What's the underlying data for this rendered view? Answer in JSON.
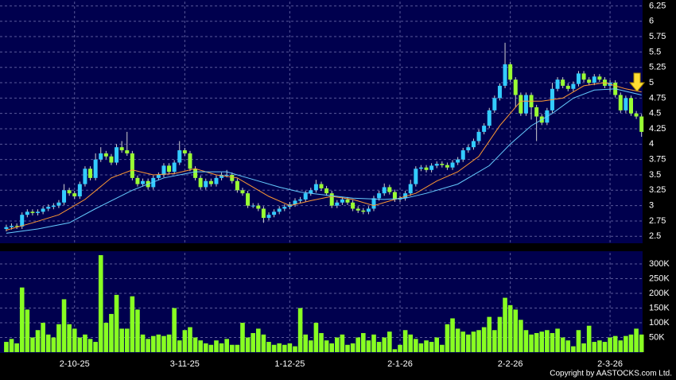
{
  "chart_data": [
    {
      "type": "candlestick",
      "up_color": "#33ccff",
      "down_color": "#99ff33",
      "wick_color": "#d0d0d0",
      "grid": true,
      "xlim": [
        -1.2,
        121.2
      ],
      "ylim": [
        2.4,
        6.32
      ],
      "yticks": [
        2.5,
        2.75,
        3,
        3.25,
        3.5,
        3.75,
        4,
        4.25,
        4.5,
        4.75,
        5,
        5.25,
        5.5,
        5.75,
        6,
        6.25
      ],
      "open": [
        2.62,
        2.65,
        2.67,
        2.66,
        2.85,
        2.9,
        2.88,
        2.9,
        2.95,
        2.98,
        3.0,
        3.05,
        3.25,
        3.2,
        3.15,
        3.35,
        3.6,
        3.45,
        3.75,
        3.85,
        3.8,
        3.7,
        3.95,
        3.9,
        3.85,
        3.45,
        3.35,
        3.4,
        3.3,
        3.45,
        3.5,
        3.65,
        3.55,
        3.7,
        3.9,
        3.85,
        3.6,
        3.45,
        3.3,
        3.4,
        3.35,
        3.45,
        3.5,
        3.5,
        3.4,
        3.25,
        3.2,
        3.0,
        3.0,
        2.95,
        2.8,
        2.85,
        2.9,
        2.95,
        2.98,
        3.02,
        3.08,
        3.1,
        3.2,
        3.25,
        3.35,
        3.28,
        3.2,
        3.0,
        3.05,
        3.1,
        3.05,
        2.95,
        2.92,
        2.9,
        2.95,
        3.12,
        3.2,
        3.3,
        3.22,
        3.1,
        3.12,
        3.2,
        3.35,
        3.6,
        3.62,
        3.58,
        3.65,
        3.68,
        3.66,
        3.62,
        3.7,
        3.75,
        3.9,
        3.95,
        4.05,
        4.2,
        4.3,
        4.55,
        4.75,
        4.95,
        5.3,
        5.05,
        4.8,
        4.5,
        4.8,
        4.6,
        4.45,
        4.35,
        4.55,
        4.9,
        5.05,
        4.95,
        4.9,
        4.98,
        5.15,
        5.05,
        5.0,
        5.1,
        5.05,
        4.95,
        5.0,
        4.8,
        4.55,
        4.75,
        4.5,
        4.45
      ],
      "high": [
        2.69,
        2.71,
        2.71,
        2.89,
        2.94,
        2.94,
        2.94,
        2.99,
        3.02,
        3.04,
        3.09,
        3.35,
        3.29,
        3.24,
        3.39,
        3.64,
        3.64,
        3.85,
        3.95,
        3.89,
        3.84,
        4.0,
        4.05,
        4.2,
        3.89,
        3.49,
        3.44,
        3.44,
        3.49,
        3.54,
        3.69,
        3.69,
        3.74,
        4.05,
        3.94,
        3.89,
        3.64,
        3.49,
        3.44,
        3.44,
        3.49,
        3.54,
        3.58,
        3.54,
        3.44,
        3.29,
        3.24,
        3.04,
        3.04,
        2.99,
        2.89,
        2.94,
        2.99,
        3.02,
        3.06,
        3.12,
        3.14,
        3.24,
        3.29,
        3.42,
        3.39,
        3.32,
        3.24,
        3.09,
        3.14,
        3.14,
        3.09,
        2.99,
        2.96,
        2.99,
        3.16,
        3.24,
        3.36,
        3.34,
        3.26,
        3.16,
        3.24,
        3.42,
        3.64,
        3.66,
        3.66,
        3.69,
        3.72,
        3.72,
        3.7,
        3.74,
        3.79,
        3.94,
        3.99,
        4.09,
        4.24,
        4.34,
        4.59,
        4.79,
        4.99,
        5.65,
        5.34,
        5.09,
        4.84,
        4.84,
        4.84,
        4.64,
        4.49,
        4.59,
        5.0,
        5.09,
        5.09,
        4.99,
        5.02,
        5.19,
        5.19,
        5.09,
        5.14,
        5.14,
        5.09,
        5.04,
        5.04,
        4.84,
        4.79,
        4.79,
        4.54,
        4.49
      ],
      "low": [
        2.58,
        2.61,
        2.62,
        2.62,
        2.81,
        2.84,
        2.84,
        2.86,
        2.91,
        2.94,
        2.96,
        3.01,
        3.16,
        3.11,
        3.11,
        3.31,
        3.41,
        3.41,
        3.71,
        3.76,
        3.66,
        3.66,
        3.86,
        3.81,
        3.41,
        3.31,
        3.31,
        3.26,
        3.26,
        3.41,
        3.46,
        3.51,
        3.51,
        3.66,
        3.81,
        3.56,
        3.41,
        3.26,
        3.26,
        3.31,
        3.31,
        3.41,
        3.46,
        3.36,
        3.21,
        3.16,
        2.96,
        2.96,
        2.91,
        2.72,
        2.76,
        2.81,
        2.86,
        2.91,
        2.94,
        2.98,
        3.04,
        3.06,
        3.16,
        3.21,
        3.24,
        3.16,
        2.96,
        2.96,
        3.01,
        3.01,
        2.91,
        2.88,
        2.86,
        2.86,
        2.91,
        3.08,
        3.16,
        3.18,
        3.06,
        3.06,
        3.08,
        3.16,
        3.31,
        3.56,
        3.54,
        3.54,
        3.61,
        3.62,
        3.58,
        3.58,
        3.66,
        3.71,
        3.86,
        3.91,
        4.01,
        4.16,
        4.26,
        4.51,
        4.71,
        4.91,
        5.01,
        4.6,
        4.46,
        4.46,
        4.4,
        4.05,
        4.31,
        4.31,
        4.51,
        4.86,
        4.91,
        4.86,
        4.86,
        4.94,
        5.01,
        4.96,
        4.96,
        5.01,
        4.91,
        4.85,
        4.76,
        4.51,
        4.51,
        4.46,
        4.41,
        4.12
      ],
      "close": [
        2.65,
        2.67,
        2.66,
        2.85,
        2.9,
        2.88,
        2.9,
        2.95,
        2.98,
        3.0,
        3.05,
        3.25,
        3.2,
        3.15,
        3.35,
        3.6,
        3.45,
        3.75,
        3.85,
        3.8,
        3.7,
        3.95,
        3.9,
        3.85,
        3.45,
        3.35,
        3.4,
        3.3,
        3.45,
        3.5,
        3.65,
        3.55,
        3.7,
        3.9,
        3.85,
        3.6,
        3.45,
        3.3,
        3.4,
        3.35,
        3.45,
        3.5,
        3.5,
        3.4,
        3.25,
        3.2,
        3.0,
        3.0,
        2.95,
        2.8,
        2.85,
        2.9,
        2.95,
        2.98,
        3.02,
        3.08,
        3.1,
        3.2,
        3.25,
        3.35,
        3.28,
        3.2,
        3.0,
        3.05,
        3.1,
        3.05,
        2.95,
        2.92,
        2.9,
        2.95,
        3.12,
        3.2,
        3.3,
        3.22,
        3.1,
        3.12,
        3.2,
        3.35,
        3.6,
        3.62,
        3.58,
        3.65,
        3.68,
        3.66,
        3.62,
        3.7,
        3.75,
        3.9,
        3.95,
        4.05,
        4.2,
        4.3,
        4.55,
        4.75,
        4.95,
        5.3,
        5.05,
        4.8,
        4.5,
        4.8,
        4.6,
        4.45,
        4.35,
        4.55,
        4.9,
        5.05,
        4.95,
        4.9,
        4.98,
        5.15,
        5.05,
        5.0,
        5.1,
        5.05,
        4.95,
        5.0,
        4.8,
        4.55,
        4.75,
        4.5,
        4.45,
        4.2
      ],
      "lines": [
        {
          "color": "#ff9933",
          "x": [
            0,
            5,
            10,
            15,
            20,
            24,
            28,
            32,
            36,
            40,
            44,
            47,
            50,
            54,
            58,
            62,
            66,
            70,
            74,
            78,
            82,
            86,
            90,
            94,
            98,
            102,
            106,
            110,
            114,
            118,
            121
          ],
          "values": [
            2.6,
            2.72,
            2.85,
            3.1,
            3.45,
            3.58,
            3.5,
            3.52,
            3.6,
            3.5,
            3.45,
            3.3,
            3.15,
            3.0,
            3.08,
            3.15,
            3.1,
            3.0,
            3.1,
            3.2,
            3.4,
            3.55,
            3.8,
            4.3,
            4.7,
            4.7,
            4.75,
            4.95,
            5.0,
            4.9,
            4.85
          ]
        },
        {
          "color": "#66ccff",
          "x": [
            0,
            6,
            12,
            17,
            24,
            30,
            36,
            42,
            46,
            52,
            56,
            60,
            66,
            72,
            76,
            80,
            86,
            92,
            96,
            100,
            104,
            108,
            112,
            116,
            121
          ],
          "values": [
            2.55,
            2.62,
            2.72,
            2.95,
            3.25,
            3.45,
            3.55,
            3.55,
            3.45,
            3.3,
            3.22,
            3.18,
            3.12,
            3.1,
            3.12,
            3.2,
            3.35,
            3.65,
            4.0,
            4.3,
            4.5,
            4.75,
            4.88,
            4.9,
            4.8
          ]
        }
      ]
    },
    {
      "type": "bar",
      "color": "#88ff22",
      "grid": true,
      "xlim": [
        -1.2,
        121.2
      ],
      "ylim": [
        0,
        338000
      ],
      "yticks": [
        {
          "value": 50000,
          "label": "50K"
        },
        {
          "value": 100000,
          "label": "100K"
        },
        {
          "value": 150000,
          "label": "150K"
        },
        {
          "value": 200000,
          "label": "200K"
        },
        {
          "value": 250000,
          "label": "250K"
        },
        {
          "value": 300000,
          "label": "300K"
        }
      ],
      "xticks": [
        {
          "value": 13,
          "label": "2-10-25"
        },
        {
          "value": 34,
          "label": "3-11-25"
        },
        {
          "value": 54,
          "label": "1-12-25"
        },
        {
          "value": 75,
          "label": "2-1-26"
        },
        {
          "value": 96,
          "label": "2-2-26"
        },
        {
          "value": 115,
          "label": "2-3-26"
        }
      ],
      "values": [
        35000,
        45000,
        30000,
        220000,
        145000,
        50000,
        75000,
        100000,
        60000,
        50000,
        95000,
        180000,
        95000,
        80000,
        50000,
        60000,
        45000,
        35000,
        330000,
        100000,
        130000,
        195000,
        80000,
        80000,
        190000,
        145000,
        60000,
        45000,
        55000,
        60000,
        55000,
        60000,
        150000,
        40000,
        75000,
        85000,
        50000,
        40000,
        30000,
        25000,
        40000,
        30000,
        45000,
        25000,
        25000,
        100000,
        50000,
        65000,
        80000,
        60000,
        35000,
        25000,
        30000,
        25000,
        30000,
        20000,
        150000,
        60000,
        40000,
        100000,
        65000,
        40000,
        30000,
        50000,
        60000,
        25000,
        30000,
        50000,
        65000,
        40000,
        60000,
        35000,
        50000,
        70000,
        10000,
        25000,
        75000,
        60000,
        45000,
        30000,
        40000,
        35000,
        50000,
        25000,
        95000,
        115000,
        80000,
        70000,
        60000,
        70000,
        75000,
        85000,
        120000,
        75000,
        120000,
        185000,
        160000,
        145000,
        110000,
        75000,
        60000,
        65000,
        70000,
        75000,
        65000,
        80000,
        50000,
        40000,
        20000,
        75000,
        30000,
        90000,
        35000,
        40000,
        35000,
        50000,
        55000,
        40000,
        55000,
        60000,
        80000,
        60000
      ]
    }
  ],
  "copyright": "Copyright by AASTOCKS.com Ltd."
}
